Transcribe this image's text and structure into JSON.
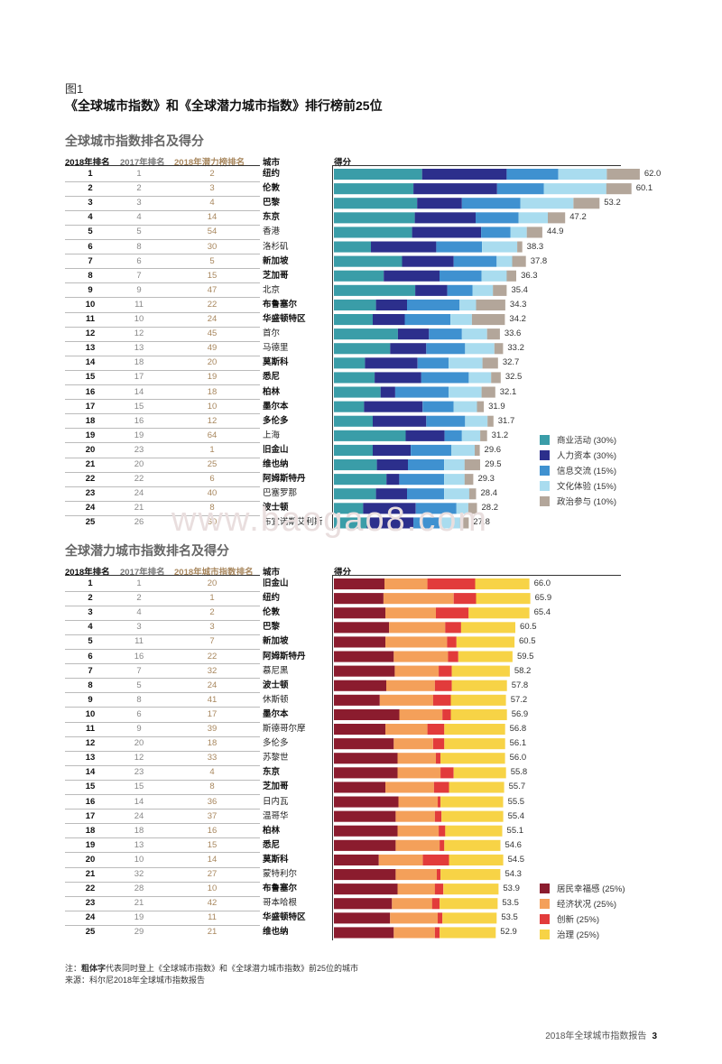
{
  "figure": {
    "label": "图1",
    "title": "《全球城市指数》和《全球潜力城市指数》排行榜前25位"
  },
  "chart_data": [
    {
      "type": "bar",
      "stacked": true,
      "orientation": "horizontal",
      "title": "全球城市指数排名及得分",
      "columns": [
        "2018年排名",
        "2017年排名",
        "2018年潜力榜排名",
        "城市",
        "得分"
      ],
      "legend_position": "bottom-right",
      "series": [
        {
          "name": "商业活动 (30%)",
          "color": "#3a9da8"
        },
        {
          "name": "人力资本 (30%)",
          "color": "#2c2f8c"
        },
        {
          "name": "信息交流 (15%)",
          "color": "#3f91d0"
        },
        {
          "name": "文化体验 (15%)",
          "color": "#a9dcef"
        },
        {
          "name": "政治参与 (10%)",
          "color": "#b3a69a"
        }
      ],
      "xlim": [
        0,
        62
      ],
      "rows": [
        {
          "rank": "1",
          "prev": "1",
          "other": "2",
          "city": "纽约",
          "bold": true,
          "score": "62.0",
          "parts": [
            19.3,
            18.5,
            11.3,
            10.6,
            7.2
          ]
        },
        {
          "rank": "2",
          "prev": "2",
          "other": "3",
          "city": "伦敦",
          "bold": true,
          "score": "60.1",
          "parts": [
            17.4,
            18.3,
            10.2,
            13.7,
            5.5
          ]
        },
        {
          "rank": "3",
          "prev": "3",
          "other": "4",
          "city": "巴黎",
          "bold": true,
          "score": "53.2",
          "parts": [
            18.2,
            9.8,
            12.8,
            11.6,
            5.7
          ]
        },
        {
          "rank": "4",
          "prev": "4",
          "other": "14",
          "city": "东京",
          "bold": true,
          "score": "47.2",
          "parts": [
            17.7,
            13.3,
            9.4,
            6.4,
            3.8
          ]
        },
        {
          "rank": "5",
          "prev": "5",
          "other": "54",
          "city": "香港",
          "bold": false,
          "score": "44.9",
          "parts": [
            17.1,
            15.1,
            6.4,
            3.6,
            3.4
          ]
        },
        {
          "rank": "6",
          "prev": "8",
          "other": "30",
          "city": "洛杉矶",
          "bold": false,
          "score": "38.3",
          "parts": [
            8.1,
            14.3,
            10.0,
            7.7,
            1.1
          ]
        },
        {
          "rank": "7",
          "prev": "6",
          "other": "5",
          "city": "新加坡",
          "bold": true,
          "score": "37.8",
          "parts": [
            14.9,
            11.3,
            9.4,
            3.4,
            3.0
          ]
        },
        {
          "rank": "8",
          "prev": "7",
          "other": "15",
          "city": "芝加哥",
          "bold": true,
          "score": "36.3",
          "parts": [
            10.9,
            12.2,
            9.2,
            5.5,
            2.1
          ]
        },
        {
          "rank": "9",
          "prev": "9",
          "other": "47",
          "city": "北京",
          "bold": false,
          "score": "35.4",
          "parts": [
            17.8,
            7.0,
            5.5,
            4.5,
            3.0
          ]
        },
        {
          "rank": "10",
          "prev": "11",
          "other": "22",
          "city": "布鲁塞尔",
          "bold": true,
          "score": "34.3",
          "parts": [
            9.2,
            6.8,
            11.5,
            3.6,
            6.4
          ]
        },
        {
          "rank": "11",
          "prev": "10",
          "other": "24",
          "city": "华盛顿特区",
          "bold": true,
          "score": "34.2",
          "parts": [
            8.5,
            7.0,
            10.0,
            4.7,
            7.2
          ]
        },
        {
          "rank": "12",
          "prev": "12",
          "other": "45",
          "city": "首尔",
          "bold": false,
          "score": "33.6",
          "parts": [
            14.0,
            6.8,
            7.2,
            5.5,
            2.8
          ]
        },
        {
          "rank": "13",
          "prev": "13",
          "other": "49",
          "city": "马德里",
          "bold": false,
          "score": "33.2",
          "parts": [
            12.3,
            7.9,
            8.5,
            6.4,
            1.9
          ]
        },
        {
          "rank": "14",
          "prev": "18",
          "other": "20",
          "city": "莫斯科",
          "bold": true,
          "score": "32.7",
          "parts": [
            6.8,
            11.5,
            6.8,
            7.4,
            3.4
          ]
        },
        {
          "rank": "15",
          "prev": "17",
          "other": "19",
          "city": "悉尼",
          "bold": true,
          "score": "32.5",
          "parts": [
            8.9,
            10.2,
            10.4,
            4.9,
            2.1
          ]
        },
        {
          "rank": "16",
          "prev": "14",
          "other": "18",
          "city": "柏林",
          "bold": true,
          "score": "32.1",
          "parts": [
            10.2,
            3.2,
            11.7,
            7.2,
            3.0
          ]
        },
        {
          "rank": "17",
          "prev": "15",
          "other": "10",
          "city": "墨尔本",
          "bold": true,
          "score": "31.9",
          "parts": [
            6.6,
            12.8,
            6.8,
            5.1,
            1.5
          ]
        },
        {
          "rank": "18",
          "prev": "16",
          "other": "12",
          "city": "多伦多",
          "bold": true,
          "score": "31.7",
          "parts": [
            8.5,
            11.7,
            8.5,
            4.9,
            1.3
          ]
        },
        {
          "rank": "19",
          "prev": "19",
          "other": "64",
          "city": "上海",
          "bold": false,
          "score": "31.2",
          "parts": [
            15.7,
            8.5,
            3.8,
            4.0,
            1.5
          ]
        },
        {
          "rank": "20",
          "prev": "23",
          "other": "1",
          "city": "旧金山",
          "bold": true,
          "score": "29.6",
          "parts": [
            8.5,
            8.3,
            8.9,
            5.1,
            1.1
          ]
        },
        {
          "rank": "21",
          "prev": "20",
          "other": "25",
          "city": "维也纳",
          "bold": true,
          "score": "29.5",
          "parts": [
            9.4,
            6.8,
            7.9,
            4.5,
            3.4
          ]
        },
        {
          "rank": "22",
          "prev": "22",
          "other": "6",
          "city": "阿姆斯特丹",
          "bold": true,
          "score": "29.3",
          "parts": [
            11.5,
            2.8,
            9.8,
            4.5,
            1.9
          ]
        },
        {
          "rank": "23",
          "prev": "24",
          "other": "40",
          "city": "巴塞罗那",
          "bold": false,
          "score": "28.4",
          "parts": [
            9.2,
            6.8,
            8.1,
            5.5,
            1.5
          ]
        },
        {
          "rank": "24",
          "prev": "21",
          "other": "8",
          "city": "波士顿",
          "bold": true,
          "score": "28.2",
          "parts": [
            6.4,
            11.5,
            8.9,
            2.6,
            1.9
          ]
        },
        {
          "rank": "25",
          "prev": "26",
          "other": "60",
          "city": "布宜诺斯艾利斯",
          "bold": false,
          "score": "27.8",
          "parts": [
            7.2,
            10.2,
            5.7,
            4.5,
            1.9
          ]
        }
      ]
    },
    {
      "type": "bar",
      "stacked": true,
      "orientation": "horizontal",
      "title": "全球潜力城市指数排名及得分",
      "columns": [
        "2018年排名",
        "2017年排名",
        "2018年城市指数排名",
        "城市",
        "得分"
      ],
      "legend_position": "bottom-right",
      "series": [
        {
          "name": "居民幸福感 (25%)",
          "color": "#8b1c2e"
        },
        {
          "name": "经济状况 (25%)",
          "color": "#f4a05a"
        },
        {
          "name": "创新 (25%)",
          "color": "#e23b3b"
        },
        {
          "name": "治理 (25%)",
          "color": "#f7d346"
        }
      ],
      "xlim": [
        0,
        66
      ],
      "rows": [
        {
          "rank": "1",
          "prev": "1",
          "other": "20",
          "city": "旧金山",
          "bold": true,
          "score": "66.0",
          "parts": [
            16.2,
            13.8,
            15.3,
            17.4
          ]
        },
        {
          "rank": "2",
          "prev": "2",
          "other": "1",
          "city": "纽约",
          "bold": true,
          "score": "65.9",
          "parts": [
            15.9,
            22.5,
            7.2,
            17.4
          ]
        },
        {
          "rank": "3",
          "prev": "4",
          "other": "2",
          "city": "伦敦",
          "bold": true,
          "score": "65.4",
          "parts": [
            16.5,
            16.2,
            10.5,
            19.5
          ]
        },
        {
          "rank": "4",
          "prev": "3",
          "other": "3",
          "city": "巴黎",
          "bold": true,
          "score": "60.5",
          "parts": [
            17.7,
            18.0,
            5.1,
            17.4
          ]
        },
        {
          "rank": "5",
          "prev": "11",
          "other": "7",
          "city": "新加坡",
          "bold": true,
          "score": "60.5",
          "parts": [
            16.5,
            19.8,
            3.0,
            18.6
          ]
        },
        {
          "rank": "6",
          "prev": "16",
          "other": "22",
          "city": "阿姆斯特丹",
          "bold": true,
          "score": "59.5",
          "parts": [
            19.2,
            17.4,
            3.3,
            17.4
          ]
        },
        {
          "rank": "7",
          "prev": "7",
          "other": "32",
          "city": "慕尼黑",
          "bold": false,
          "score": "58.2",
          "parts": [
            19.5,
            14.1,
            4.2,
            18.6
          ]
        },
        {
          "rank": "8",
          "prev": "5",
          "other": "24",
          "city": "波士顿",
          "bold": true,
          "score": "57.8",
          "parts": [
            16.8,
            15.6,
            5.4,
            17.7
          ]
        },
        {
          "rank": "9",
          "prev": "8",
          "other": "41",
          "city": "休斯顿",
          "bold": false,
          "score": "57.2",
          "parts": [
            14.7,
            17.1,
            5.7,
            17.7
          ]
        },
        {
          "rank": "10",
          "prev": "6",
          "other": "17",
          "city": "墨尔本",
          "bold": true,
          "score": "56.9",
          "parts": [
            21.0,
            13.8,
            2.7,
            18.0
          ]
        },
        {
          "rank": "11",
          "prev": "9",
          "other": "39",
          "city": "斯德哥尔摩",
          "bold": false,
          "score": "56.8",
          "parts": [
            16.5,
            13.5,
            5.4,
            19.5
          ]
        },
        {
          "rank": "12",
          "prev": "20",
          "other": "18",
          "city": "多伦多",
          "bold": false,
          "score": "56.1",
          "parts": [
            19.2,
            12.6,
            3.6,
            19.5
          ]
        },
        {
          "rank": "13",
          "prev": "12",
          "other": "33",
          "city": "苏黎世",
          "bold": false,
          "score": "56.0",
          "parts": [
            20.4,
            12.3,
            1.5,
            20.7
          ]
        },
        {
          "rank": "14",
          "prev": "23",
          "other": "4",
          "city": "东京",
          "bold": true,
          "score": "55.8",
          "parts": [
            20.4,
            13.8,
            4.2,
            16.8
          ]
        },
        {
          "rank": "15",
          "prev": "15",
          "other": "8",
          "city": "芝加哥",
          "bold": true,
          "score": "55.7",
          "parts": [
            16.5,
            15.6,
            4.8,
            17.7
          ]
        },
        {
          "rank": "16",
          "prev": "14",
          "other": "36",
          "city": "日内瓦",
          "bold": false,
          "score": "55.5",
          "parts": [
            20.7,
            12.6,
            0.9,
            20.1
          ]
        },
        {
          "rank": "17",
          "prev": "24",
          "other": "37",
          "city": "温哥华",
          "bold": false,
          "score": "55.4",
          "parts": [
            19.8,
            12.6,
            2.1,
            19.8
          ]
        },
        {
          "rank": "18",
          "prev": "18",
          "other": "16",
          "city": "柏林",
          "bold": true,
          "score": "55.1",
          "parts": [
            20.4,
            13.2,
            2.1,
            18.3
          ]
        },
        {
          "rank": "19",
          "prev": "13",
          "other": "15",
          "city": "悉尼",
          "bold": true,
          "score": "54.6",
          "parts": [
            19.8,
            14.1,
            1.5,
            18.0
          ]
        },
        {
          "rank": "20",
          "prev": "10",
          "other": "14",
          "city": "莫斯科",
          "bold": true,
          "score": "54.5",
          "parts": [
            14.4,
            14.1,
            8.4,
            17.4
          ]
        },
        {
          "rank": "21",
          "prev": "32",
          "other": "27",
          "city": "蒙特利尔",
          "bold": false,
          "score": "54.3",
          "parts": [
            19.8,
            13.2,
            1.2,
            19.2
          ]
        },
        {
          "rank": "22",
          "prev": "28",
          "other": "10",
          "city": "布鲁塞尔",
          "bold": true,
          "score": "53.9",
          "parts": [
            20.4,
            12.0,
            2.7,
            17.7
          ]
        },
        {
          "rank": "23",
          "prev": "21",
          "other": "42",
          "city": "哥本哈根",
          "bold": false,
          "score": "53.5",
          "parts": [
            18.6,
            12.9,
            2.4,
            18.6
          ]
        },
        {
          "rank": "24",
          "prev": "19",
          "other": "11",
          "city": "华盛顿特区",
          "bold": true,
          "score": "53.5",
          "parts": [
            18.0,
            15.3,
            1.5,
            17.4
          ]
        },
        {
          "rank": "25",
          "prev": "29",
          "other": "21",
          "city": "维也纳",
          "bold": true,
          "score": "52.9",
          "parts": [
            19.2,
            13.2,
            1.5,
            18.0
          ]
        }
      ]
    }
  ],
  "watermark": "www.baogao8.com",
  "notes": {
    "note_prefix": "注：",
    "note_bold": "粗体字",
    "note_rest": "代表同时登上《全球城市指数》和《全球潜力城市指数》前25位的城市",
    "source": "来源：科尔尼2018年全球城市指数报告"
  },
  "footer": {
    "text": "2018年全球城市指数报告",
    "page": "3"
  }
}
